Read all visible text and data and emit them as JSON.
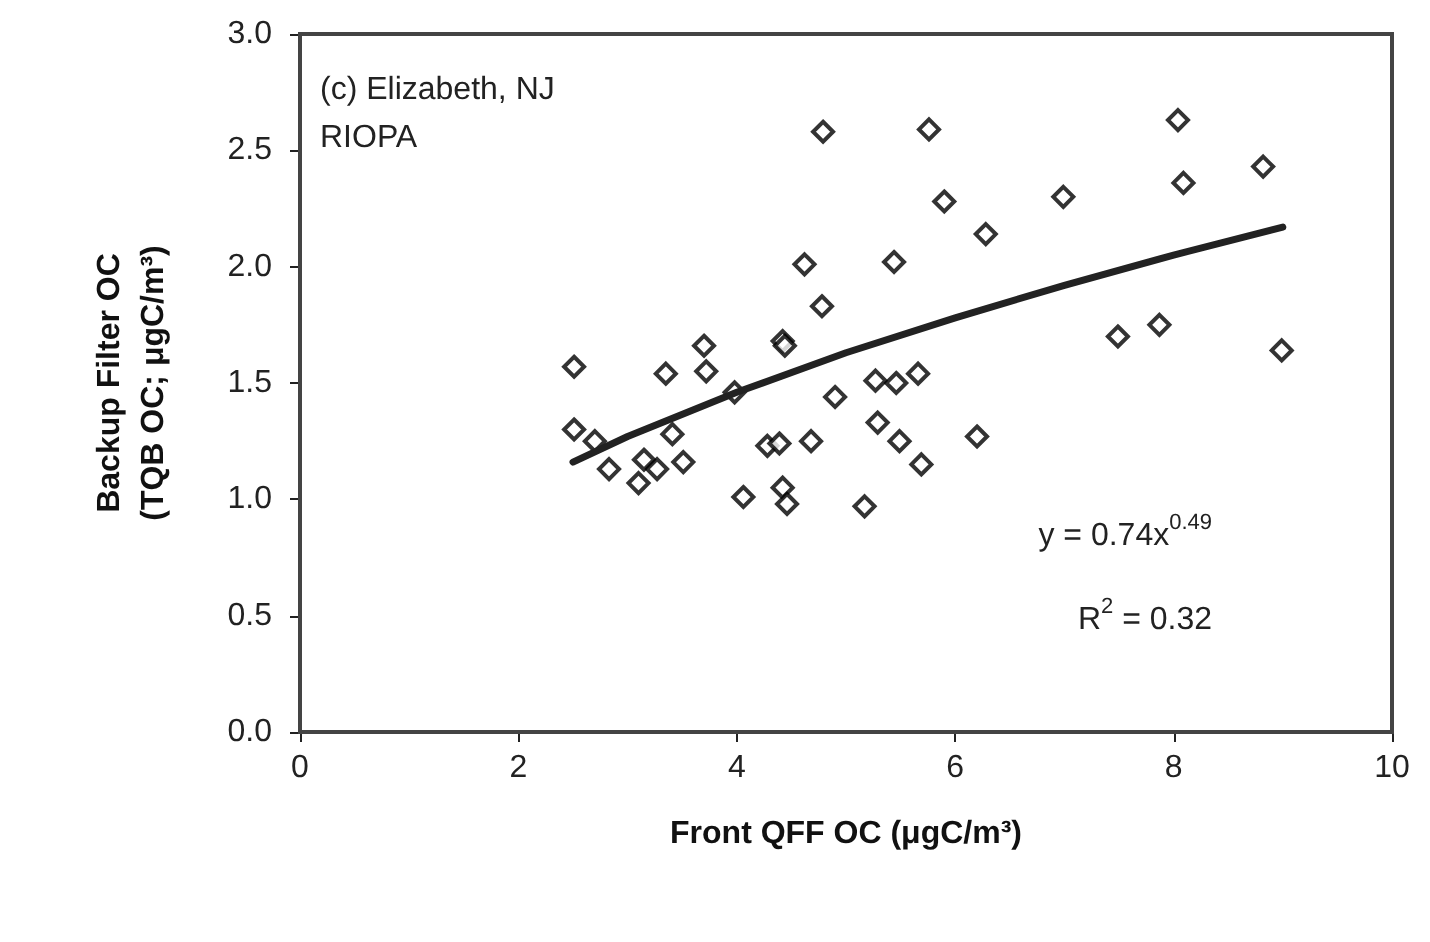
{
  "chart_data": {
    "type": "scatter",
    "xlabel": "Front QFF OC (μgC/m³)",
    "ylabel": "Backup Filter OC\n(TQB OC; μgC/m³)",
    "annotations": [
      "(c) Elizabeth, NJ\nRIOPA",
      "y = 0.74x$^{0.49}$",
      "R$^{2}$ = 0.32"
    ],
    "xlim": [
      0,
      10
    ],
    "xticks": [
      0,
      2,
      4,
      6,
      8,
      10
    ],
    "ylim": [
      0,
      3
    ],
    "yticks": [
      {
        "value": 0,
        "label": "0.0"
      },
      {
        "value": 0.5,
        "label": "0.5"
      },
      {
        "value": 1,
        "label": "1.0"
      },
      {
        "value": 1.5,
        "label": "1.5"
      },
      {
        "value": 2,
        "label": "2.0"
      },
      {
        "value": 2.5,
        "label": "2.5"
      },
      {
        "value": 3,
        "label": "3.0"
      }
    ],
    "grid": false,
    "marker": "diamond",
    "series": [
      {
        "color": "#000000",
        "x": [
          4.79,
          5.76,
          5.9,
          4.62,
          5.44,
          4.78,
          2.51,
          3.35,
          3.7,
          3.72,
          4.42,
          4.44,
          3.98,
          4.9,
          5.27,
          5.46,
          5.66,
          2.51,
          2.7,
          3.41,
          2.83,
          3.15,
          3.27,
          3.1,
          3.51,
          4.28,
          4.39,
          4.68,
          5.29,
          5.49,
          5.69,
          4.06,
          4.42,
          4.46,
          5.17,
          8.04,
          8.82,
          8.09,
          6.99,
          6.28,
          7.49,
          7.87,
          8.99,
          6.2
        ],
        "values": [
          2.58,
          2.59,
          2.28,
          2.01,
          2.02,
          1.83,
          1.57,
          1.54,
          1.66,
          1.55,
          1.68,
          1.66,
          1.46,
          1.44,
          1.51,
          1.5,
          1.54,
          1.3,
          1.25,
          1.28,
          1.13,
          1.17,
          1.13,
          1.07,
          1.16,
          1.23,
          1.24,
          1.25,
          1.33,
          1.25,
          1.15,
          1.01,
          1.05,
          0.98,
          0.97,
          2.63,
          2.43,
          2.36,
          2.3,
          2.14,
          1.7,
          1.75,
          1.64,
          1.27
        ]
      },
      {
        "type": "line",
        "color": "#222222",
        "marker": "none",
        "x": [
          2.5,
          3,
          4,
          5,
          6,
          7,
          8,
          9
        ],
        "values": [
          1.16,
          1.27,
          1.46,
          1.63,
          1.78,
          1.92,
          2.05,
          2.17
        ]
      }
    ]
  }
}
